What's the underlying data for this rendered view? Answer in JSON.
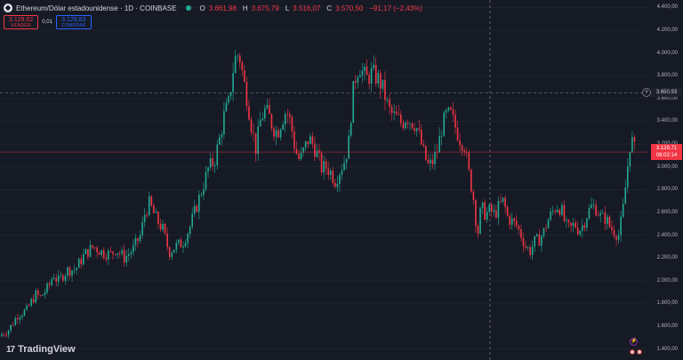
{
  "legend": {
    "logo_icon": "ethereum-logo-icon",
    "title": "Ethereum/Dólar estadounidense · 1D · COINBASE",
    "status_color": "#22ab94",
    "open_key": "O",
    "open": "3.661,98",
    "high_key": "H",
    "high": "3.675,79",
    "low_key": "L",
    "low": "3.516,07",
    "close_key": "C",
    "close": "3.570,50",
    "change": "−91,17 (−2,43%)"
  },
  "trade": {
    "sell_price": "3.129,62",
    "sell_label": "VENDER",
    "spread": "0,01",
    "buy_price": "3.129,83",
    "buy_label": "COMPRAR"
  },
  "price_axis": {
    "ticks": [
      "4.400,00",
      "4.200,00",
      "4.000,00",
      "3.800,00",
      "3.600,00",
      "3.400,00",
      "3.200,00",
      "3.000,00",
      "2.800,00",
      "2.600,00",
      "2.400,00",
      "2.200,00",
      "2.000,00",
      "1.800,00",
      "1.600,00",
      "1.400,00"
    ],
    "crosshair_value": "3.650,93",
    "crosshair_icon": "plus-circle-icon",
    "last_price": "3.129,71",
    "countdown": "06:02:14"
  },
  "colors": {
    "up": "#22ab94",
    "down": "#f23645",
    "background": "#161a25",
    "grid": "#232733"
  },
  "brand": {
    "icon": "tradingview-logo-icon",
    "name": "TradingView"
  },
  "extras": {
    "bolt_icon": "lightning-icon",
    "flags_icon": "us-flag-icon"
  },
  "chart_data": {
    "type": "candlestick",
    "symbol": "ETHUSD",
    "interval": "1D",
    "ylim": [
      1350,
      4450
    ],
    "y_ticks": [
      4400,
      4200,
      4000,
      3800,
      3600,
      3400,
      3200,
      3000,
      2800,
      2600,
      2400,
      2200,
      2000,
      1800,
      1600,
      1400
    ],
    "last_price": 3129.71,
    "crosshair_price": 3650.93,
    "close_path": [
      [
        0,
        1520
      ],
      [
        10,
        1570
      ],
      [
        20,
        1700
      ],
      [
        30,
        1740
      ],
      [
        40,
        1880
      ],
      [
        45,
        1850
      ],
      [
        55,
        1950
      ],
      [
        60,
        2060
      ],
      [
        65,
        1990
      ],
      [
        75,
        2090
      ],
      [
        85,
        2100
      ],
      [
        95,
        2230
      ],
      [
        105,
        2300
      ],
      [
        115,
        2250
      ],
      [
        125,
        2230
      ],
      [
        130,
        2280
      ],
      [
        140,
        2200
      ],
      [
        150,
        2280
      ],
      [
        158,
        2400
      ],
      [
        163,
        2600
      ],
      [
        168,
        2680
      ],
      [
        175,
        2550
      ],
      [
        183,
        2450
      ],
      [
        190,
        2250
      ],
      [
        197,
        2300
      ],
      [
        205,
        2330
      ],
      [
        213,
        2460
      ],
      [
        220,
        2630
      ],
      [
        227,
        2800
      ],
      [
        234,
        2980
      ],
      [
        241,
        3050
      ],
      [
        247,
        3250
      ],
      [
        252,
        3450
      ],
      [
        257,
        3550
      ],
      [
        262,
        3850
      ],
      [
        266,
        4000
      ],
      [
        270,
        3950
      ],
      [
        274,
        3750
      ],
      [
        278,
        3600
      ],
      [
        283,
        3350
      ],
      [
        288,
        3150
      ],
      [
        292,
        3380
      ],
      [
        297,
        3500
      ],
      [
        302,
        3450
      ],
      [
        307,
        3350
      ],
      [
        312,
        3300
      ],
      [
        317,
        3420
      ],
      [
        322,
        3500
      ],
      [
        327,
        3380
      ],
      [
        332,
        3150
      ],
      [
        337,
        3050
      ],
      [
        342,
        3150
      ],
      [
        347,
        3250
      ],
      [
        352,
        3200
      ],
      [
        357,
        3100
      ],
      [
        362,
        2980
      ],
      [
        367,
        3000
      ],
      [
        372,
        2950
      ],
      [
        377,
        2880
      ],
      [
        382,
        2970
      ],
      [
        387,
        3050
      ],
      [
        392,
        3200
      ],
      [
        396,
        3600
      ],
      [
        400,
        3800
      ],
      [
        404,
        3900
      ],
      [
        408,
        3820
      ],
      [
        412,
        3770
      ],
      [
        417,
        3820
      ],
      [
        422,
        3800
      ],
      [
        427,
        3750
      ],
      [
        432,
        3650
      ],
      [
        437,
        3500
      ],
      [
        442,
        3450
      ],
      [
        447,
        3420
      ],
      [
        452,
        3380
      ],
      [
        457,
        3450
      ],
      [
        462,
        3400
      ],
      [
        467,
        3380
      ],
      [
        472,
        3250
      ],
      [
        477,
        3100
      ],
      [
        482,
        3000
      ],
      [
        487,
        3050
      ],
      [
        492,
        3150
      ],
      [
        497,
        3350
      ],
      [
        502,
        3450
      ],
      [
        507,
        3450
      ],
      [
        512,
        3350
      ],
      [
        517,
        3250
      ],
      [
        522,
        3200
      ],
      [
        527,
        2950
      ],
      [
        532,
        2750
      ],
      [
        537,
        2400
      ],
      [
        541,
        2650
      ],
      [
        546,
        2580
      ],
      [
        551,
        2620
      ],
      [
        556,
        2580
      ],
      [
        561,
        2650
      ],
      [
        566,
        2700
      ],
      [
        571,
        2550
      ],
      [
        576,
        2520
      ],
      [
        581,
        2480
      ],
      [
        586,
        2400
      ],
      [
        591,
        2300
      ],
      [
        596,
        2260
      ],
      [
        601,
        2340
      ],
      [
        606,
        2360
      ],
      [
        611,
        2420
      ],
      [
        616,
        2530
      ],
      [
        621,
        2600
      ],
      [
        626,
        2660
      ],
      [
        631,
        2630
      ],
      [
        636,
        2480
      ],
      [
        641,
        2450
      ],
      [
        646,
        2500
      ],
      [
        651,
        2440
      ],
      [
        656,
        2500
      ],
      [
        661,
        2600
      ],
      [
        666,
        2660
      ],
      [
        671,
        2630
      ],
      [
        676,
        2550
      ],
      [
        681,
        2550
      ],
      [
        686,
        2470
      ],
      [
        691,
        2430
      ],
      [
        696,
        2400
      ],
      [
        701,
        2650
      ],
      [
        705,
        2950
      ],
      [
        709,
        3250
      ],
      [
        712,
        3200
      ],
      [
        714,
        3129.71
      ]
    ]
  }
}
